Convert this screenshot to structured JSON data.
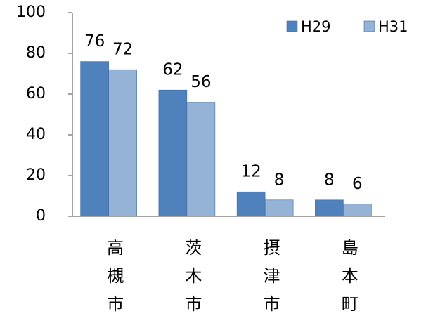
{
  "chart_data": {
    "type": "bar",
    "categories": [
      "高槻市",
      "茨木市",
      "摂津市",
      "島本町"
    ],
    "series": [
      {
        "name": "H29",
        "color": "#4f81bd",
        "values": [
          76,
          62,
          12,
          8
        ]
      },
      {
        "name": "H31",
        "color": "#95b3d7",
        "values": [
          72,
          56,
          8,
          6
        ]
      }
    ],
    "ylim": [
      0,
      100
    ],
    "yticks": [
      0,
      20,
      40,
      60,
      80,
      100
    ],
    "grid": false,
    "legend": "top-right"
  }
}
